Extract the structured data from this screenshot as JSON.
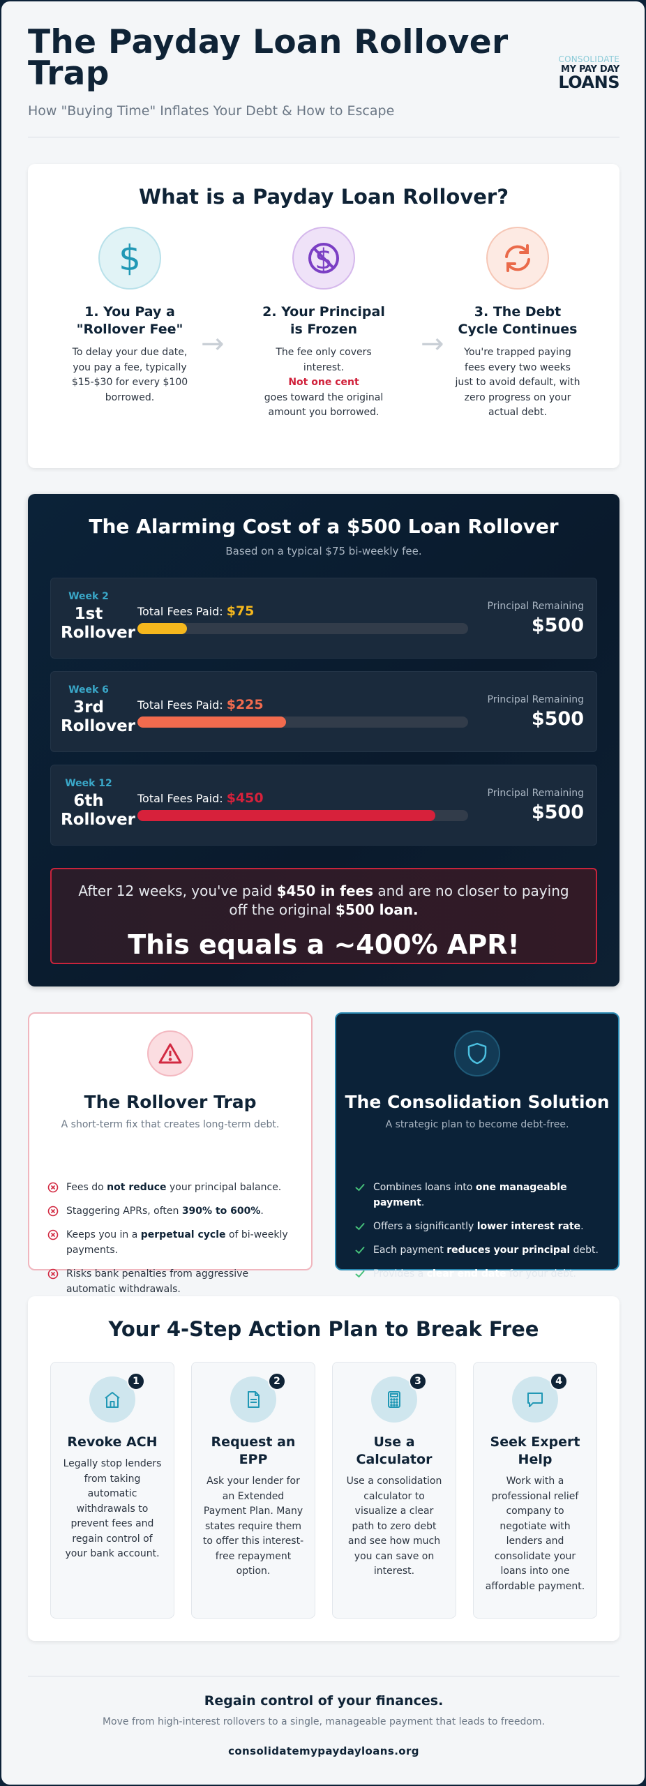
{
  "header": {
    "title": "The Payday Loan Rollover Trap",
    "subtitle": "How \"Buying Time\" Inflates Your Debt & How to Escape",
    "logo": {
      "line1": "CONSOLIDATE",
      "line2": "MY PAY DAY",
      "line3": "LOANS"
    }
  },
  "what": {
    "heading": "What is a Payday Loan Rollover?",
    "steps": [
      {
        "title": "1. You Pay a \"Rollover Fee\"",
        "text": "To delay your due date, you pay a fee, typically $15-$30 for every $100 borrowed.",
        "icon": "dollar-icon"
      },
      {
        "title": "2. Your Principal is Frozen",
        "text_a": "The fee only covers interest.",
        "text_red": "Not one cent",
        "text_b": "goes toward the original amount you borrowed.",
        "icon": "no-dollar-icon"
      },
      {
        "title": "3. The Debt Cycle Continues",
        "text": "You're trapped paying fees every two weeks just to avoid default, with zero progress on your actual debt.",
        "icon": "cycle-icon"
      }
    ],
    "arrow": "→"
  },
  "cost": {
    "heading": "The Alarming Cost of a $500 Loan Rollover",
    "subheading": "Based on a typical $75 bi-weekly fee.",
    "fees_label": "Total Fees Paid:",
    "principal_label": "Principal Remaining",
    "rows": [
      {
        "week": "Week 2",
        "rollover": "1st Rollover",
        "fees": "$75",
        "fees_value": 75,
        "principal": "$500",
        "color": "#f5b71d"
      },
      {
        "week": "Week 6",
        "rollover": "3rd Rollover",
        "fees": "$225",
        "fees_value": 225,
        "principal": "$500",
        "color": "#f26b4e"
      },
      {
        "week": "Week 12",
        "rollover": "6th Rollover",
        "fees": "$450",
        "fees_value": 450,
        "principal": "$500",
        "color": "#d7213b"
      }
    ],
    "bar_max": 500,
    "warning": {
      "text_a": "After 12 weeks, you've paid ",
      "bold_a": "$450 in fees",
      "text_b": " and are no closer to paying off the original ",
      "bold_b": "$500 loan.",
      "apr": "This equals a ~400% APR!"
    }
  },
  "trap": {
    "title": "The Rollover Trap",
    "subtitle": "A short-term fix that creates long-term debt.",
    "points": [
      {
        "a": "Fees do ",
        "b": "not reduce",
        "c": " your principal balance."
      },
      {
        "a": "Staggering APRs, often ",
        "b": "390% to 600%",
        "c": "."
      },
      {
        "a": "Keeps you in a ",
        "b": "perpetual cycle",
        "c": " of bi-weekly payments."
      },
      {
        "a": "Risks bank penalties from aggressive automatic withdrawals.",
        "b": "",
        "c": ""
      }
    ]
  },
  "solution": {
    "title": "The Consolidation Solution",
    "subtitle": "A strategic plan to become debt-free.",
    "points": [
      {
        "a": "Combines loans into ",
        "b": "one manageable payment",
        "c": "."
      },
      {
        "a": "Offers a significantly ",
        "b": "lower interest rate",
        "c": "."
      },
      {
        "a": "Each payment ",
        "b": "reduces your principal",
        "c": " debt."
      },
      {
        "a": "Provides a ",
        "b": "clear end date",
        "c": " for your debt."
      }
    ]
  },
  "plan": {
    "heading": "Your 4-Step Action Plan to Break Free",
    "steps": [
      {
        "num": "1",
        "title": "Revoke ACH",
        "text": "Legally stop lenders from taking automatic withdrawals to prevent fees and regain control of your bank account.",
        "icon": "bank-icon"
      },
      {
        "num": "2",
        "title": "Request an EPP",
        "text": "Ask your lender for an Extended Payment Plan. Many states require them to offer this interest-free repayment option.",
        "icon": "document-icon"
      },
      {
        "num": "3",
        "title": "Use a Calculator",
        "text": "Use a consolidation calculator to visualize a clear path to zero debt and see how much you can save on interest.",
        "icon": "calculator-icon"
      },
      {
        "num": "4",
        "title": "Seek Expert Help",
        "text": "Work with a professional relief company to negotiate with lenders and consolidate your loans into one affordable payment.",
        "icon": "chat-icon"
      }
    ]
  },
  "footer": {
    "headline": "Regain control of your finances.",
    "text": "Move from high-interest rollovers to a single, manageable payment that leads to freedom.",
    "url": "consolidatemypaydayloans.org"
  }
}
